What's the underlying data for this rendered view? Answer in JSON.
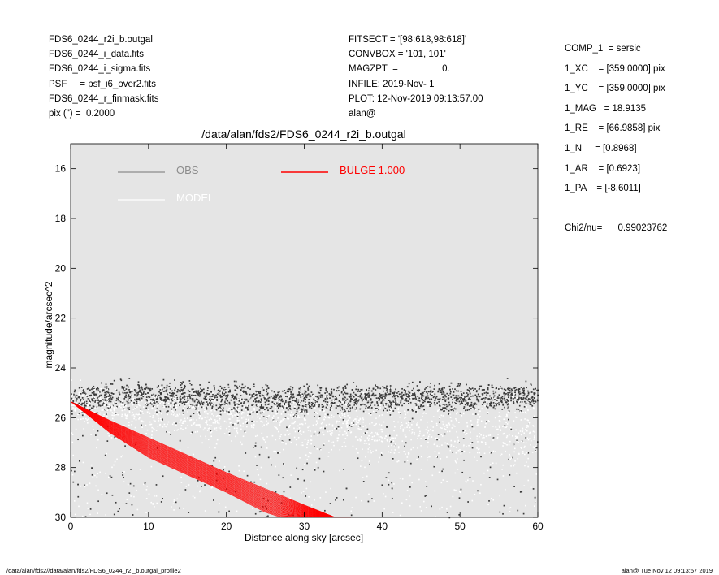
{
  "header_left": [
    "FDS6_0244_r2i_b.outgal",
    "FDS6_0244_i_data.fits",
    "FDS6_0244_i_sigma.fits",
    "PSF     = psf_i6_over2.fits",
    "FDS6_0244_r_finmask.fits",
    "pix (\") =  0.2000"
  ],
  "header_mid": [
    "FITSECT = '[98:618,98:618]'",
    "CONVBOX = '101, 101'",
    "MAGZPT  =                 0.",
    "INFILE: 2019-Nov- 1",
    "PLOT: 12-Nov-2019 09:13:57.00",
    "alan@"
  ],
  "header_right": [
    "COMP_1  = sersic",
    "1_XC    = [359.0000] pix",
    "1_YC    = [359.0000] pix",
    "1_MAG   = 18.9135",
    "1_RE    = [66.9858] pix",
    "1_N     = [0.8968]",
    "1_AR    = [0.6923]",
    "1_PA    = [-8.6011]"
  ],
  "chi2": "Chi2/nu=      0.99023762",
  "footer_left": "/data/alan/fds2//data/alan/fds2/FDS6_0244_r2i_b.outgal_profile2",
  "footer_right": "alan@  Tue Nov 12 09:13:57 2019",
  "colors": {
    "plot_bg": "#e5e5e5",
    "obs": "#3a3a3a",
    "obs_legend": "#8c8c8c",
    "model": "#ffffff",
    "bulge": "#ff0000"
  },
  "chart_data": {
    "type": "scatter",
    "title": "/data/alan/fds2/FDS6_0244_r2i_b.outgal",
    "xlabel": "Distance along sky [arcsec]",
    "ylabel": "magnitude/arcsec^2",
    "xlim": [
      0,
      60
    ],
    "ylim": [
      30,
      15
    ],
    "y_inverted": true,
    "xticks": [
      0,
      10,
      20,
      30,
      40,
      50,
      60
    ],
    "yticks": [
      16,
      18,
      20,
      22,
      24,
      26,
      28,
      30
    ],
    "grid": false,
    "legend": {
      "placement": "top-left",
      "entries": [
        {
          "label": "OBS",
          "color": "#8c8c8c"
        },
        {
          "label": "MODEL",
          "color": "#ffffff"
        },
        {
          "label": "BULGE  1.000",
          "color": "#ff0000"
        }
      ]
    },
    "series": [
      {
        "name": "OBS",
        "description_values": "dense noisy band",
        "center_curve": [
          [
            0,
            25.4
          ],
          [
            5,
            25.1
          ],
          [
            10,
            25.1
          ],
          [
            20,
            25.2
          ],
          [
            30,
            25.3
          ],
          [
            40,
            25.2
          ],
          [
            50,
            25.2
          ],
          [
            60,
            25.1
          ]
        ],
        "spread": 0.55,
        "outlier_range": [
          24.5,
          30
        ]
      },
      {
        "name": "MODEL",
        "center_curve": [
          [
            0,
            25.4
          ],
          [
            10,
            25.7
          ],
          [
            20,
            26.0
          ],
          [
            30,
            26.2
          ],
          [
            40,
            26.4
          ],
          [
            50,
            26.5
          ],
          [
            60,
            26.6
          ]
        ],
        "spread": 0.35
      },
      {
        "name": "BULGE  1.000",
        "upper_edge": [
          [
            0,
            25.35
          ],
          [
            5,
            26.1
          ],
          [
            10,
            26.8
          ],
          [
            20,
            28.2
          ],
          [
            30,
            29.5
          ],
          [
            34,
            30.0
          ]
        ],
        "lower_edge": [
          [
            0,
            25.35
          ],
          [
            5,
            26.6
          ],
          [
            10,
            27.6
          ],
          [
            20,
            29.0
          ],
          [
            25,
            29.8
          ],
          [
            27,
            30.0
          ]
        ]
      }
    ]
  }
}
